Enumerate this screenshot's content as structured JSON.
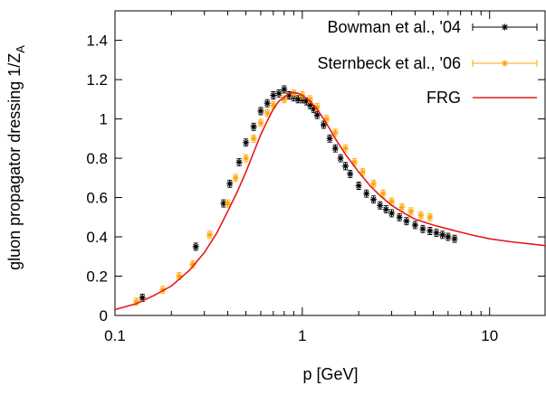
{
  "chart_data": {
    "type": "scatter",
    "xlabel": "p [GeV]",
    "ylabel": "gluon propagator dressing 1/Z",
    "ylabel_subscript": "A",
    "x_scale": "log",
    "xlim": [
      0.1,
      20
    ],
    "ylim": [
      0,
      1.55
    ],
    "x_ticks": [
      0.1,
      1,
      10
    ],
    "x_tick_labels": [
      "0.1",
      "1",
      "10"
    ],
    "y_ticks": [
      0,
      0.2,
      0.4,
      0.6,
      0.8,
      1,
      1.2,
      1.4
    ],
    "y_tick_labels": [
      "0",
      "0.2",
      "0.4",
      "0.6",
      "0.8",
      "1",
      "1.2",
      "1.4"
    ],
    "grid": false,
    "legend_position": "top-right",
    "series": [
      {
        "name": "Bowman et al., '04",
        "style": "points-errorbars",
        "color": "#000000",
        "x": [
          0.14,
          0.27,
          0.38,
          0.41,
          0.46,
          0.5,
          0.55,
          0.6,
          0.65,
          0.7,
          0.75,
          0.8,
          0.85,
          0.9,
          0.95,
          1.0,
          1.05,
          1.1,
          1.15,
          1.2,
          1.3,
          1.4,
          1.5,
          1.6,
          1.7,
          1.8,
          2.0,
          2.2,
          2.4,
          2.6,
          2.8,
          3.0,
          3.3,
          3.6,
          4.0,
          4.4,
          4.8,
          5.2,
          5.6,
          6.0,
          6.5
        ],
        "y": [
          0.09,
          0.35,
          0.57,
          0.67,
          0.78,
          0.88,
          0.96,
          1.04,
          1.08,
          1.12,
          1.13,
          1.15,
          1.12,
          1.11,
          1.1,
          1.1,
          1.09,
          1.07,
          1.05,
          1.02,
          0.97,
          0.9,
          0.85,
          0.8,
          0.76,
          0.72,
          0.66,
          0.62,
          0.59,
          0.56,
          0.54,
          0.52,
          0.5,
          0.48,
          0.46,
          0.44,
          0.43,
          0.42,
          0.41,
          0.4,
          0.39
        ]
      },
      {
        "name": "Sternbeck et al., '06",
        "style": "points-errorbars",
        "color": "#ffa500",
        "x": [
          0.13,
          0.18,
          0.22,
          0.26,
          0.32,
          0.4,
          0.44,
          0.5,
          0.55,
          0.6,
          0.65,
          0.7,
          0.8,
          0.9,
          1.0,
          1.1,
          1.2,
          1.35,
          1.5,
          1.7,
          1.9,
          2.1,
          2.4,
          2.7,
          3.0,
          3.4,
          3.8,
          4.3,
          4.8
        ],
        "y": [
          0.07,
          0.13,
          0.2,
          0.26,
          0.41,
          0.57,
          0.7,
          0.8,
          0.9,
          0.98,
          1.03,
          1.07,
          1.1,
          1.13,
          1.12,
          1.1,
          1.06,
          1.0,
          0.93,
          0.85,
          0.78,
          0.73,
          0.67,
          0.62,
          0.58,
          0.55,
          0.53,
          0.51,
          0.5
        ]
      },
      {
        "name": "FRG",
        "style": "line",
        "color": "#e41a1c",
        "x": [
          0.1,
          0.13,
          0.16,
          0.2,
          0.25,
          0.3,
          0.35,
          0.4,
          0.45,
          0.5,
          0.55,
          0.6,
          0.65,
          0.7,
          0.75,
          0.8,
          0.85,
          0.9,
          0.95,
          1.0,
          1.1,
          1.2,
          1.3,
          1.4,
          1.5,
          1.7,
          2.0,
          2.3,
          2.6,
          3.0,
          3.5,
          4.0,
          5.0,
          6.0,
          8.0,
          10.0,
          13.0,
          16.0,
          20.0
        ],
        "y": [
          0.03,
          0.06,
          0.1,
          0.15,
          0.23,
          0.32,
          0.42,
          0.53,
          0.63,
          0.73,
          0.83,
          0.92,
          0.99,
          1.05,
          1.09,
          1.11,
          1.13,
          1.135,
          1.13,
          1.12,
          1.09,
          1.05,
          1.0,
          0.95,
          0.9,
          0.82,
          0.73,
          0.66,
          0.61,
          0.56,
          0.52,
          0.49,
          0.46,
          0.44,
          0.41,
          0.39,
          0.375,
          0.365,
          0.355
        ]
      }
    ]
  }
}
